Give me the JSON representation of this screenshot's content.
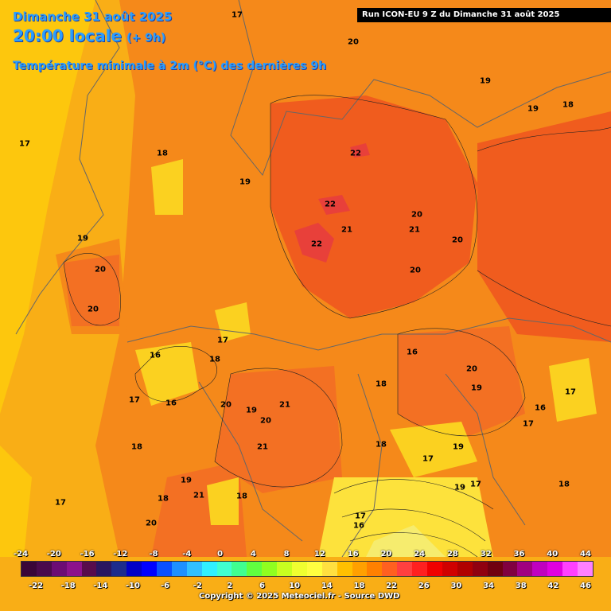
{
  "header": {
    "date_line": "Dimanche 31 août 2025",
    "time_line": "20:00 locale",
    "offset": "(+ 9h)",
    "variable": "Température minimale à 2m (°C) des dernières 9h"
  },
  "run_bar": "Run ICON-EU 9 Z du Dimanche 31 août 2025",
  "copyright": "Copyright © 2025 Meteociel.fr - Source DWD",
  "colors": {
    "title": "#2a9dff",
    "background_band": "#f7a11c"
  },
  "map_labels": [
    "17",
    "20",
    "19",
    "19",
    "18",
    "17",
    "18",
    "19",
    "22",
    "22",
    "22",
    "21",
    "21",
    "20",
    "20",
    "20",
    "20",
    "19",
    "20",
    "17",
    "18",
    "16",
    "17",
    "16",
    "20",
    "19",
    "20",
    "21",
    "21",
    "16",
    "18",
    "20",
    "19",
    "17",
    "16",
    "18",
    "17",
    "19",
    "17",
    "18",
    "19",
    "18",
    "17",
    "18",
    "21",
    "17",
    "18",
    "19",
    "16",
    "17",
    "20"
  ],
  "legend": {
    "top_ticks": [
      "-24",
      "-20",
      "-16",
      "-12",
      "-8",
      "-4",
      "0",
      "4",
      "8",
      "12",
      "16",
      "20",
      "24",
      "28",
      "32",
      "36",
      "40",
      "44"
    ],
    "bottom_ticks": [
      "-22",
      "-18",
      "-14",
      "-10",
      "-6",
      "-2",
      "2",
      "6",
      "10",
      "14",
      "18",
      "22",
      "26",
      "30",
      "34",
      "38",
      "42",
      "46"
    ],
    "swatches": [
      "#3a0638",
      "#4a0a4c",
      "#6c0c74",
      "#8c128c",
      "#580c4c",
      "#2a1660",
      "#1c2c8c",
      "#0000c8",
      "#0000ff",
      "#0a50ff",
      "#1e90ff",
      "#30c0ff",
      "#30f0ff",
      "#40ffd0",
      "#40ff90",
      "#60ff40",
      "#90ff20",
      "#c8ff20",
      "#f0ff30",
      "#ffff40",
      "#ffe040",
      "#ffc000",
      "#ffa000",
      "#ff8000",
      "#ff6020",
      "#ff4040",
      "#ff2020",
      "#f00000",
      "#d00000",
      "#b00000",
      "#900010",
      "#700010",
      "#800040",
      "#a00080",
      "#c000c0",
      "#e000e0",
      "#ff40ff",
      "#ff80ff"
    ]
  }
}
